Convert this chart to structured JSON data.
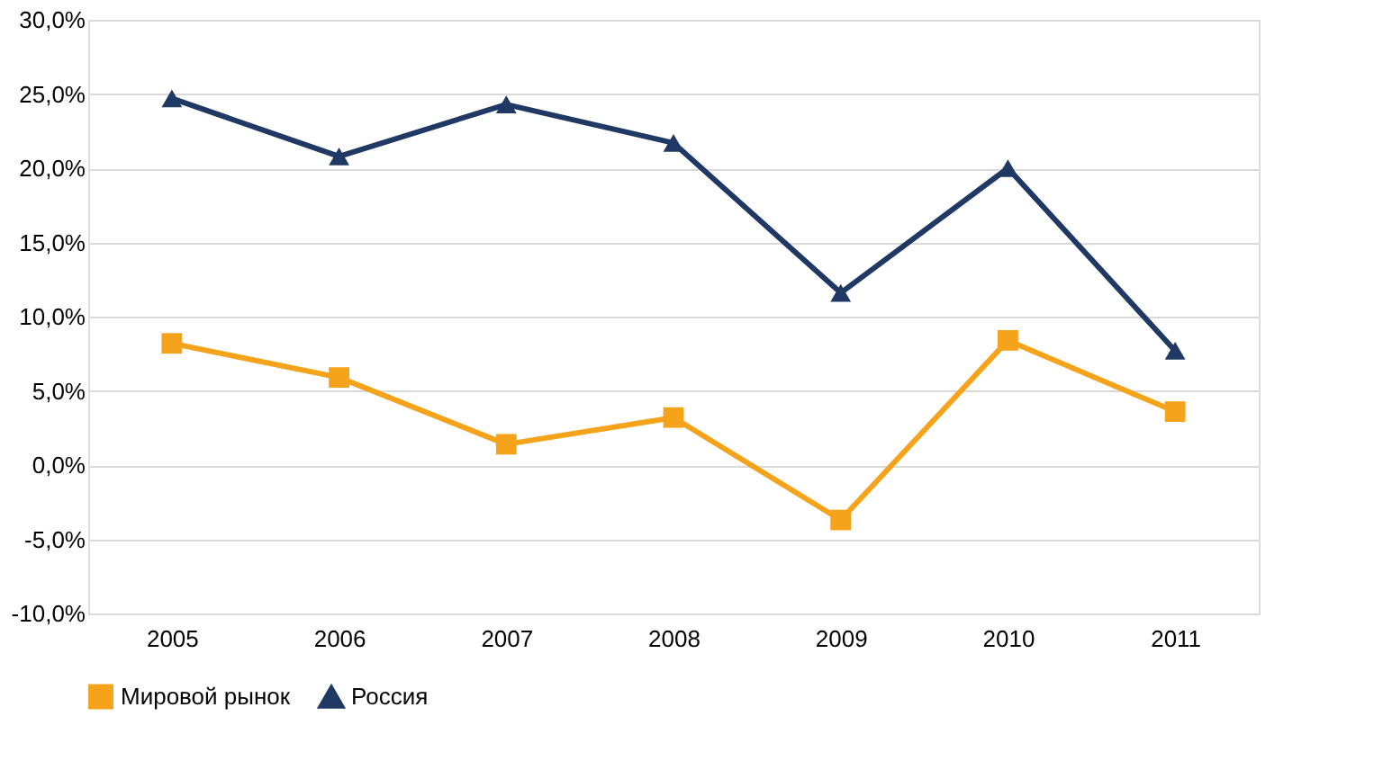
{
  "chart_data": {
    "type": "line",
    "categories": [
      "2005",
      "2006",
      "2007",
      "2008",
      "2009",
      "2010",
      "2011"
    ],
    "series": [
      {
        "name": "Мировой рынок",
        "color": "#f5a31a",
        "marker": "square",
        "values": [
          8.2,
          5.9,
          1.4,
          3.2,
          -3.7,
          8.4,
          3.6
        ]
      },
      {
        "name": "Россия",
        "color": "#1f3864",
        "marker": "triangle",
        "values": [
          24.7,
          20.8,
          24.3,
          21.7,
          11.6,
          20.0,
          7.7
        ]
      }
    ],
    "ylim": [
      -10,
      30
    ],
    "yticks": [
      {
        "value": -10,
        "label": "-10,0%"
      },
      {
        "value": -5,
        "label": "-5,0%"
      },
      {
        "value": 0,
        "label": "0,0%"
      },
      {
        "value": 5,
        "label": "5,0%"
      },
      {
        "value": 10,
        "label": "10,0%"
      },
      {
        "value": 15,
        "label": "15,0%"
      },
      {
        "value": 20,
        "label": "20,0%"
      },
      {
        "value": 25,
        "label": "25,0%"
      },
      {
        "value": 30,
        "label": "30,0%"
      }
    ],
    "grid": "y",
    "legend": "bottom",
    "line_style": "solid"
  }
}
